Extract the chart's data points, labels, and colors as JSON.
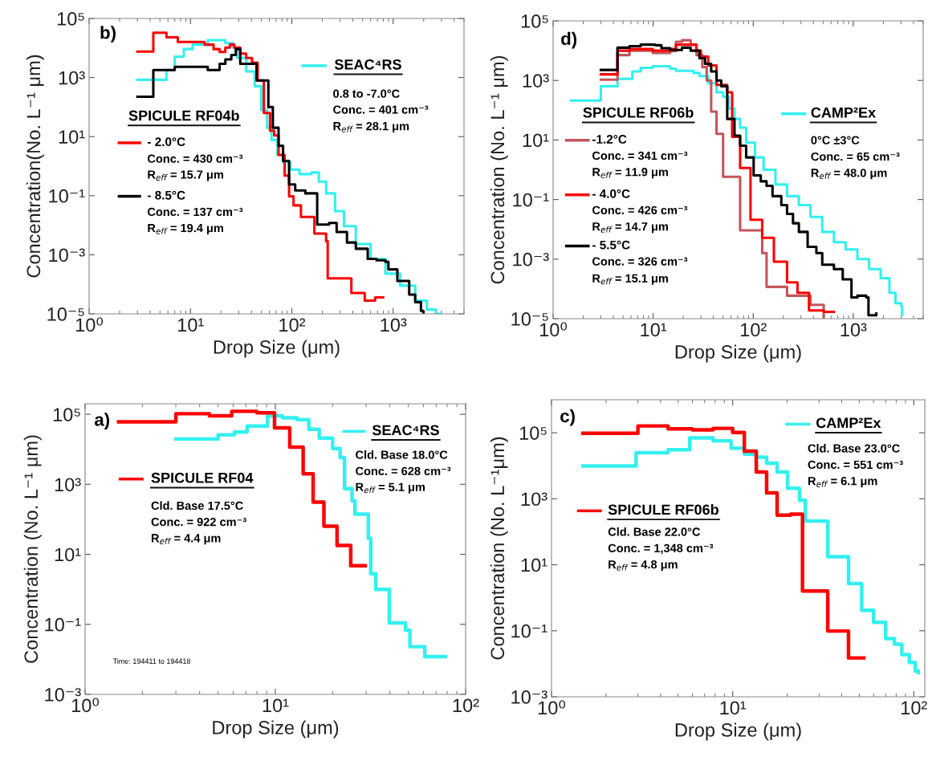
{
  "chart_data": [
    {
      "type": "step",
      "legend": "top",
      "title": "b)",
      "xlabel": "Drop Size (μm)",
      "ylabel": "Concentration(No. L⁻¹ μm)",
      "log": "xy",
      "legend_title": "SPICULE RF04b",
      "xlim": [
        1,
        5000
      ],
      "ylim": [
        1e-05,
        100000
      ],
      "xticks": [
        {
          "value": 1,
          "label": "10⁰"
        },
        {
          "value": 10,
          "label": "10¹"
        },
        {
          "value": 100,
          "label": "10²"
        },
        {
          "value": 1000,
          "label": "10³"
        }
      ],
      "yticks": [
        {
          "value": 1e-05,
          "label": "10⁻⁵"
        },
        {
          "value": 0.001,
          "label": "10⁻³"
        },
        {
          "value": 0.1,
          "label": "10⁻¹"
        },
        {
          "value": 10,
          "label": "10¹"
        },
        {
          "value": 1000,
          "label": "10³"
        },
        {
          "value": 100000,
          "label": "10⁵"
        }
      ],
      "series": [
        {
          "name": "SEAC⁴RS",
          "color": "#33f0f0",
          "x": [
            3.0,
            5.8,
            7.0,
            8.6,
            10.5,
            14.8,
            22.1,
            26.2,
            29,
            35.5,
            43,
            50,
            57,
            63,
            72,
            82,
            97,
            119,
            156,
            185,
            218,
            267,
            327,
            428,
            600,
            839,
            1170,
            1650,
            2150,
            2640,
            2980
          ],
          "values": [
            840,
            1800,
            5100,
            9200,
            13000,
            18400,
            14600,
            10300,
            4600,
            1600,
            510,
            79,
            20,
            7.8,
            2.4,
            1.37,
            0.77,
            0.54,
            0.61,
            0.3,
            0.12,
            0.03,
            0.0093,
            0.0023,
            0.00073,
            0.00023,
            9e-05,
            2.8e-05,
            1.4e-05,
            1e-05,
            1e-05
          ]
        },
        {
          "name": "- 2.0°C",
          "color": "#ff0000",
          "x": [
            3.0,
            4.3,
            5.8,
            7.5,
            13.8,
            16.9,
            19.4,
            22.1,
            24.5,
            27.1,
            31,
            35.5,
            40.5,
            46,
            53,
            61,
            67,
            74,
            85,
            94,
            104,
            123,
            167,
            218,
            226,
            387,
            524,
            663,
            796
          ],
          "values": [
            7600,
            33000,
            23000,
            16000,
            13000,
            9200,
            7300,
            10300,
            13000,
            10300,
            6500,
            4600,
            3200,
            800,
            63,
            16,
            11,
            2.4,
            0.48,
            0.095,
            0.047,
            0.019,
            0.0052,
            0.0029,
            0.00016,
            5.1e-05,
            2.8e-05,
            3.6e-05,
            3.6e-05
          ]
        },
        {
          "name": "- 8.5°C",
          "color": "#000000",
          "x": [
            3.0,
            4.3,
            7.0,
            14.8,
            19.4,
            22.1,
            25.3,
            28,
            31,
            42,
            44.9,
            55,
            58.7,
            65,
            74,
            82,
            94,
            108,
            136,
            178,
            233,
            277,
            350,
            428,
            561,
            686,
            839,
            898,
            1100,
            1440,
            1650,
            1880,
            1990
          ],
          "values": [
            224,
            1800,
            2300,
            1800,
            2900,
            4100,
            5800,
            9200,
            2900,
            2900,
            800,
            800,
            100,
            20,
            4.9,
            1.5,
            0.24,
            0.15,
            0.12,
            0.0105,
            0.012,
            0.0059,
            0.0026,
            0.0016,
            0.00073,
            0.00065,
            0.00058,
            0.00032,
            0.00013,
            4.5e-05,
            2.5e-05,
            1.26e-05,
            1e-05
          ]
        }
      ],
      "annotations": [
        "Conc. = 430 cm⁻³",
        "R$_{eff}$ = 15.7 μm",
        "Conc. = 137 cm⁻³",
        "R$_{eff}$ = 19.4 μm",
        "0.8 to -7.0°C",
        "Conc. = 401 cm⁻³",
        "R$_{eff}$ = 28.1 μm"
      ]
    },
    {
      "type": "step",
      "legend": "left",
      "title": "d)",
      "xlabel": "Drop Size (μm)",
      "ylabel": "Concentration (No. L⁻¹ μm)",
      "log": "xy",
      "legend_title": "SPICULE RF06b",
      "xlim": [
        1,
        5000
      ],
      "ylim": [
        1e-05,
        100000
      ],
      "xticks": [
        {
          "value": 1,
          "label": "10⁰"
        },
        {
          "value": 10,
          "label": "10¹"
        },
        {
          "value": 100,
          "label": "10²"
        },
        {
          "value": 1000,
          "label": "10³"
        }
      ],
      "yticks": [
        {
          "value": 1e-05,
          "label": "10⁻⁵"
        },
        {
          "value": 0.001,
          "label": "10⁻³"
        },
        {
          "value": 0.1,
          "label": "10⁻¹"
        },
        {
          "value": 10,
          "label": "10¹"
        },
        {
          "value": 1000,
          "label": "10³"
        },
        {
          "value": 100000,
          "label": "10⁵"
        }
      ],
      "series": [
        {
          "name": "CAMP²Ex",
          "color": "#33f0f0",
          "x": [
            1.5,
            3.0,
            4.4,
            6.2,
            7.5,
            9.9,
            14.8,
            16.9,
            25.3,
            29,
            35.5,
            43,
            50,
            57,
            65,
            74,
            85,
            104,
            127,
            167,
            218,
            286,
            374,
            490,
            641,
            839,
            1100,
            1440,
            1880,
            2300,
            2640,
            3020,
            3080
          ],
          "values": [
            210,
            640,
            1130,
            2000,
            2650,
            3000,
            2500,
            2100,
            1800,
            1400,
            800,
            400,
            285,
            114,
            51,
            26,
            8.1,
            2.6,
            1.0,
            0.32,
            0.13,
            0.065,
            0.026,
            0.0082,
            0.0037,
            0.0021,
            0.001,
            0.00046,
            0.00023,
            7.4e-05,
            3.3e-05,
            2.6e-05,
            1.3e-05
          ]
        },
        {
          "name": "-1.2°C",
          "color": "#c2555a",
          "x": [
            3.0,
            4.4,
            5.8,
            9.9,
            14.8,
            16.9,
            19.4,
            23.7,
            27.1,
            31,
            34.3,
            38,
            43,
            50,
            74,
            123,
            136,
            218,
            374,
            507
          ],
          "values": [
            1060,
            7100,
            10000,
            8400,
            9600,
            20000,
            22400,
            15900,
            7100,
            2800,
            1000,
            90,
            16,
            0.58,
            0.0092,
            0.0016,
            0.000117,
            5.9e-05,
            2.9e-05,
            1e-05
          ]
        },
        {
          "name": "- 4.0°C",
          "color": "#ff0000",
          "x": [
            3.0,
            4.4,
            5.8,
            9.9,
            14.8,
            16.9,
            22.1,
            27.1,
            30,
            35.5,
            43,
            55,
            61.6,
            74,
            94,
            123,
            161,
            218,
            277,
            361,
            507,
            641
          ],
          "values": [
            1600,
            10000,
            11300,
            10000,
            11300,
            15900,
            15900,
            10000,
            6300,
            3200,
            710,
            400,
            12.8,
            1.15,
            0.021,
            0.0052,
            0.00082,
            0.000165,
            7.4e-05,
            1.9e-05,
            1.7e-05,
            1.7e-05
          ]
        },
        {
          "name": "- 5.5°C",
          "color": "#000000",
          "x": [
            3.0,
            4.4,
            5.8,
            7.5,
            10.5,
            12.1,
            14.8,
            19.4,
            23.7,
            29,
            33,
            38,
            43,
            48,
            55,
            65,
            74,
            85,
            101,
            119,
            136,
            156,
            191,
            218,
            250,
            286,
            350,
            428,
            490,
            641,
            785,
            960,
            1100,
            1350,
            1420,
            1700
          ],
          "values": [
            2250,
            12600,
            14200,
            15900,
            15200,
            12100,
            10500,
            12600,
            10000,
            5600,
            3600,
            2000,
            1000,
            640,
            51,
            14,
            6.4,
            2.6,
            0.65,
            0.41,
            0.29,
            0.13,
            0.065,
            0.033,
            0.016,
            0.0082,
            0.0026,
            0.0016,
            0.00065,
            0.00046,
            0.00021,
            5.2e-05,
            5.9e-05,
            5.2e-05,
            1.3e-05,
            1.5e-05
          ]
        }
      ],
      "annotations": [
        "Conc. = 341 cm⁻³",
        "R$_{eff}$ = 11.9 μm",
        "Conc. = 426 cm⁻³",
        "R$_{eff}$ = 14.7 μm",
        "Conc. = 326 cm⁻³",
        "R$_{eff}$ = 15.1 μm",
        "0°C ±3°C",
        "Conc. = 65 cm⁻³",
        "R$_{eff}$ = 48.0 μm"
      ]
    },
    {
      "type": "step",
      "legend": "top",
      "title": "a)",
      "xlabel": "Drop Size (μm)",
      "ylabel": "Concentration (No. L⁻¹ μm)",
      "log": "xy",
      "xlim": [
        1,
        100
      ],
      "ylim": [
        0.001,
        200000
      ],
      "xticks": [
        {
          "value": 1,
          "label": "10⁰"
        },
        {
          "value": 10,
          "label": "10¹"
        },
        {
          "value": 100,
          "label": "10²"
        }
      ],
      "yticks": [
        {
          "value": 0.001,
          "label": "10⁻³"
        },
        {
          "value": 0.1,
          "label": "10⁻¹"
        },
        {
          "value": 10,
          "label": "10¹"
        },
        {
          "value": 1000,
          "label": "10³"
        },
        {
          "value": 100000,
          "label": "10⁵"
        }
      ],
      "series": [
        {
          "name": "SEAC⁴RS",
          "color": "#33f0f0",
          "x": [
            3.0,
            5.0,
            6.1,
            7.1,
            9.1,
            10.9,
            13.0,
            15.0,
            17.0,
            20,
            21.9,
            23.1,
            25.3,
            26.2,
            30.8,
            31.7,
            33.7,
            39.7,
            48.3,
            51,
            61,
            78.5
          ],
          "values": [
            19700,
            26000,
            31000,
            46000,
            91000,
            79000,
            70000,
            37500,
            21000,
            10500,
            5800,
            750,
            340,
            141,
            29,
            2.8,
            1.0,
            0.11,
            0.068,
            0.023,
            0.012,
            0.012
          ]
        },
        {
          "name": "SPICULE RF04",
          "color": "#ff0000",
          "x": [
            1.5,
            3.0,
            4.5,
            5.9,
            8.0,
            9.9,
            11.9,
            14.0,
            15.8,
            18.0,
            21.1,
            24.9,
            29.7
          ],
          "values": [
            61000,
            104000,
            91000,
            122000,
            110000,
            41000,
            11600,
            2000,
            310,
            64,
            18,
            4.75,
            4.75
          ]
        }
      ],
      "annotations": [
        "Cld. Base 17.5°C",
        "Conc. = 922 cm⁻³",
        "R$_{eff}$ = 4.4 μm",
        "Cld. Base 18.0°C",
        "Conc. = 628 cm⁻³",
        "R$_{eff}$ = 5.1 μm",
        "Time: 194411 to 194418"
      ]
    },
    {
      "type": "step",
      "legend": "top",
      "title": "c)",
      "xlabel": "Drop Size (μm)",
      "ylabel": "Concentration (No. L⁻¹μm)",
      "log": "xy",
      "xlim": [
        1,
        115
      ],
      "ylim": [
        0.001,
        1000000
      ],
      "xticks": [
        {
          "value": 1,
          "label": "10⁰"
        },
        {
          "value": 10,
          "label": "10¹"
        },
        {
          "value": 100,
          "label": "10²"
        }
      ],
      "yticks": [
        {
          "value": 0.001,
          "label": "10⁻³"
        },
        {
          "value": 0.1,
          "label": "10⁻¹"
        },
        {
          "value": 10,
          "label": "10¹"
        },
        {
          "value": 1000,
          "label": "10³"
        },
        {
          "value": 100000,
          "label": "10⁵"
        }
      ],
      "series": [
        {
          "name": "CAMP²Ex",
          "color": "#33f0f0",
          "x": [
            1.49,
            2.93,
            4.4,
            5.8,
            7.8,
            9.8,
            11.6,
            13.5,
            15.4,
            17.6,
            20.1,
            23.4,
            25.2,
            33.5,
            43.6,
            51.6,
            60,
            69.9,
            78.2,
            85.9,
            94.5,
            102,
            106
          ],
          "values": [
            9800,
            24900,
            30600,
            70000,
            57000,
            34000,
            22400,
            18200,
            12000,
            6500,
            2070,
            900,
            211,
            17.5,
            2.7,
            0.42,
            0.18,
            0.058,
            0.039,
            0.019,
            0.011,
            0.006,
            0.0054
          ]
        },
        {
          "name": "SPICULE RF06b",
          "color": "#ff0000",
          "x": [
            1.49,
            3.0,
            4.4,
            6.0,
            7.8,
            10,
            11.6,
            13.5,
            15.4,
            17.6,
            20.9,
            24.3,
            33.5,
            43.6,
            53
          ],
          "values": [
            96000,
            161000,
            131000,
            123000,
            136000,
            102000,
            27600,
            6500,
            1500,
            320,
            340,
            1.6,
            0.098,
            0.015,
            0.015
          ]
        }
      ],
      "annotations": [
        "Cld. Base 23.0°C",
        "Conc. = 551 cm⁻³",
        "R$_{eff}$ = 6.1 μm",
        "Cld. Base 22.0°C",
        "Conc. = 1,348 cm⁻³",
        "R$_{eff}$ = 4.8 μm"
      ]
    }
  ]
}
